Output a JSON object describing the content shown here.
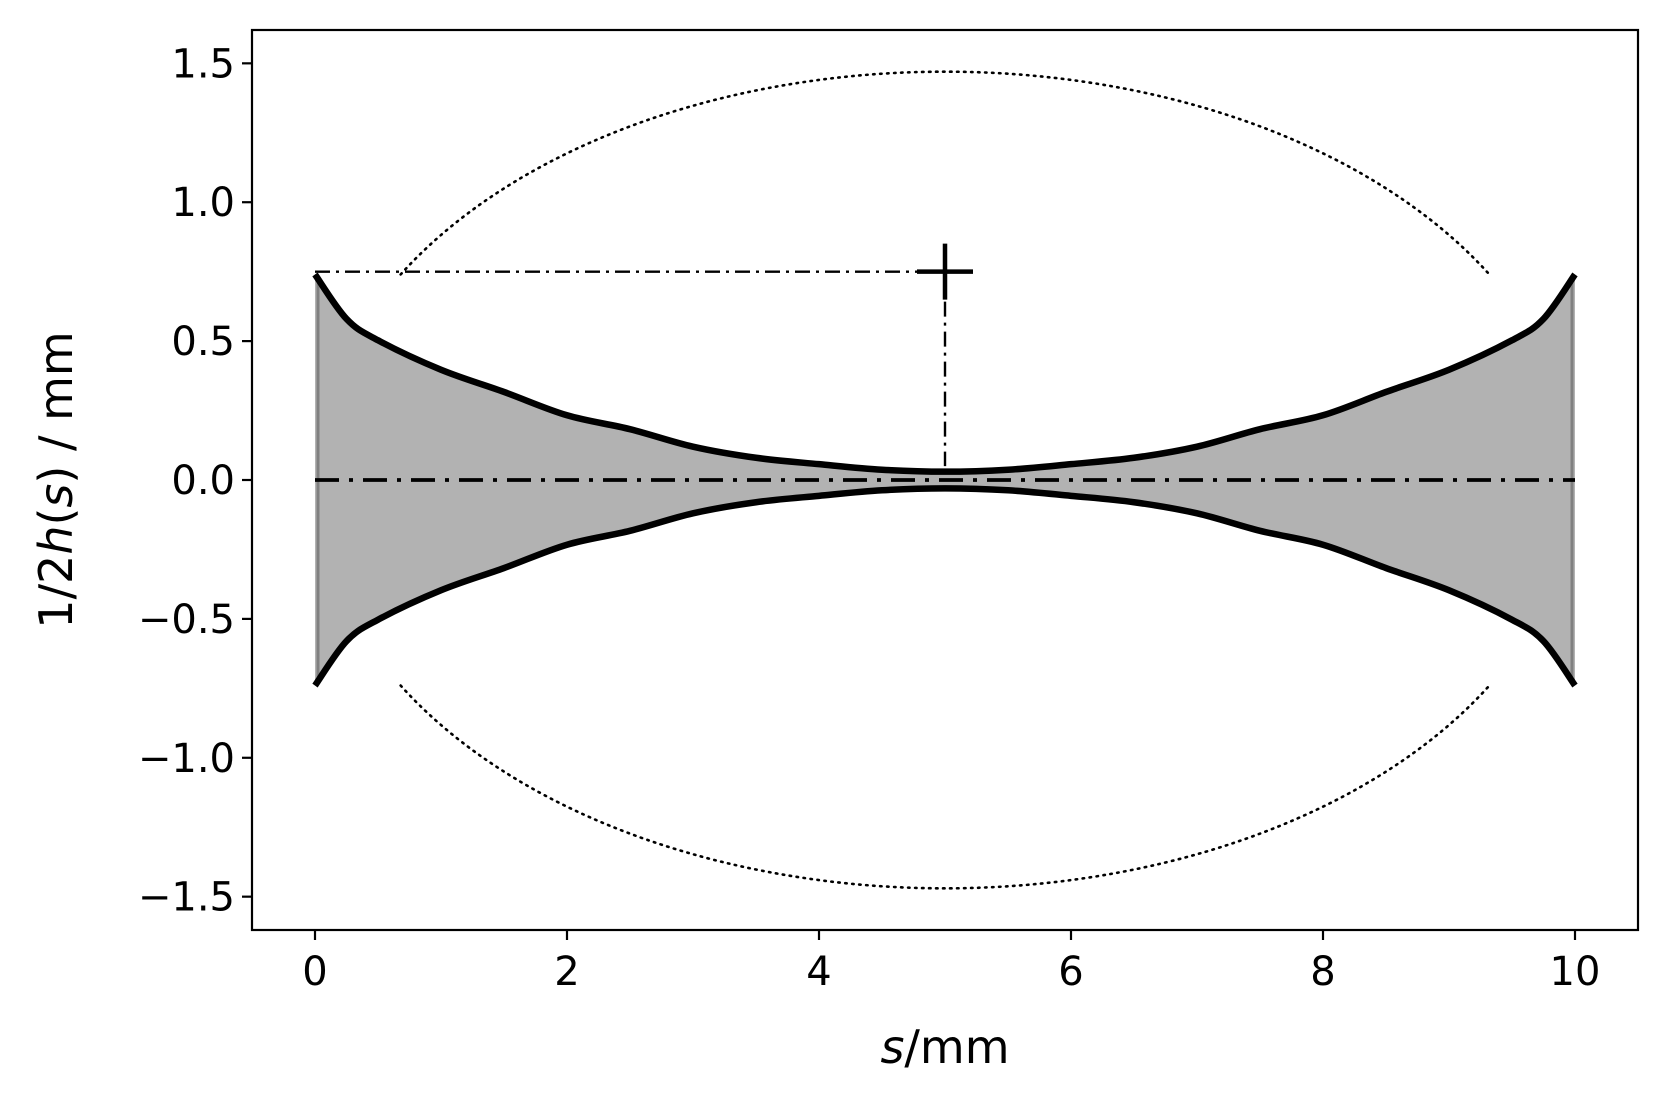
{
  "chart_data": {
    "type": "line",
    "title": "",
    "xlabel": {
      "italic": "s",
      "rest": "/mm"
    },
    "ylabel": {
      "part1": "1/2",
      "italic1": "h",
      "part2": "(",
      "italic2": "s",
      "part3": ") / mm"
    },
    "xlim": [
      -0.5,
      10.5
    ],
    "ylim": [
      -1.62,
      1.62
    ],
    "xticks": [
      0,
      2,
      4,
      6,
      8,
      10
    ],
    "xtick_labels": [
      "0",
      "2",
      "4",
      "6",
      "8",
      "10"
    ],
    "yticks": [
      1.5,
      1.0,
      0.5,
      0.0,
      -0.5,
      -1.0,
      -1.5
    ],
    "ytick_labels": [
      "1.5",
      "1.0",
      "0.5",
      "0.0",
      "−0.5",
      "−1.0",
      "−1.5"
    ],
    "grid": false,
    "series": [
      {
        "style": "solid-thick",
        "color": "#000000",
        "points": [
          [
            0,
            0.74
          ],
          [
            0.25,
            0.58
          ],
          [
            0.5,
            0.503
          ],
          [
            1,
            0.397
          ],
          [
            1.5,
            0.317
          ],
          [
            2,
            0.233
          ],
          [
            2.5,
            0.183
          ],
          [
            3,
            0.12
          ],
          [
            3.5,
            0.08
          ],
          [
            4,
            0.057
          ],
          [
            4.5,
            0.037
          ],
          [
            5,
            0.03
          ],
          [
            5.5,
            0.037
          ],
          [
            6,
            0.057
          ],
          [
            6.5,
            0.08
          ],
          [
            7,
            0.12
          ],
          [
            7.5,
            0.183
          ],
          [
            8,
            0.233
          ],
          [
            8.5,
            0.317
          ],
          [
            9,
            0.397
          ],
          [
            9.5,
            0.503
          ],
          [
            9.75,
            0.58
          ],
          [
            10,
            0.74
          ]
        ]
      },
      {
        "style": "solid-thick",
        "color": "#000000",
        "points": [
          [
            0,
            -0.74
          ],
          [
            0.25,
            -0.58
          ],
          [
            0.5,
            -0.503
          ],
          [
            1,
            -0.397
          ],
          [
            1.5,
            -0.317
          ],
          [
            2,
            -0.233
          ],
          [
            2.5,
            -0.183
          ],
          [
            3,
            -0.12
          ],
          [
            3.5,
            -0.08
          ],
          [
            4,
            -0.057
          ],
          [
            4.5,
            -0.037
          ],
          [
            5,
            -0.03
          ],
          [
            5.5,
            -0.037
          ],
          [
            6,
            -0.057
          ],
          [
            6.5,
            -0.08
          ],
          [
            7,
            -0.12
          ],
          [
            7.5,
            -0.183
          ],
          [
            8,
            -0.233
          ],
          [
            8.5,
            -0.317
          ],
          [
            9,
            -0.397
          ],
          [
            9.5,
            -0.503
          ],
          [
            9.75,
            -0.58
          ],
          [
            10,
            -0.74
          ]
        ]
      },
      {
        "style": "dotted",
        "color": "#000000",
        "ellipse": {
          "cx": 5,
          "cy": 0,
          "rx": 5,
          "ry": 1.47,
          "y_cut": 0.74
        }
      },
      {
        "style": "dash-dot",
        "color": "#000000",
        "points": [
          [
            0,
            0
          ],
          [
            10,
            0
          ]
        ]
      },
      {
        "style": "dash-dot-thin",
        "color": "#000000",
        "points": [
          [
            0,
            0.75
          ],
          [
            5,
            0.75
          ]
        ]
      },
      {
        "style": "dash-dot-thin",
        "color": "#000000",
        "points": [
          [
            5,
            0.75
          ],
          [
            5,
            0.05
          ]
        ]
      }
    ],
    "fill_between": {
      "color": "#b2b2b2",
      "edge_color": "#808080",
      "upper_series": 0,
      "lower_series": 1
    },
    "markers": [
      {
        "shape": "plus",
        "x": 5,
        "y": 0.75,
        "color": "#000000"
      }
    ]
  }
}
